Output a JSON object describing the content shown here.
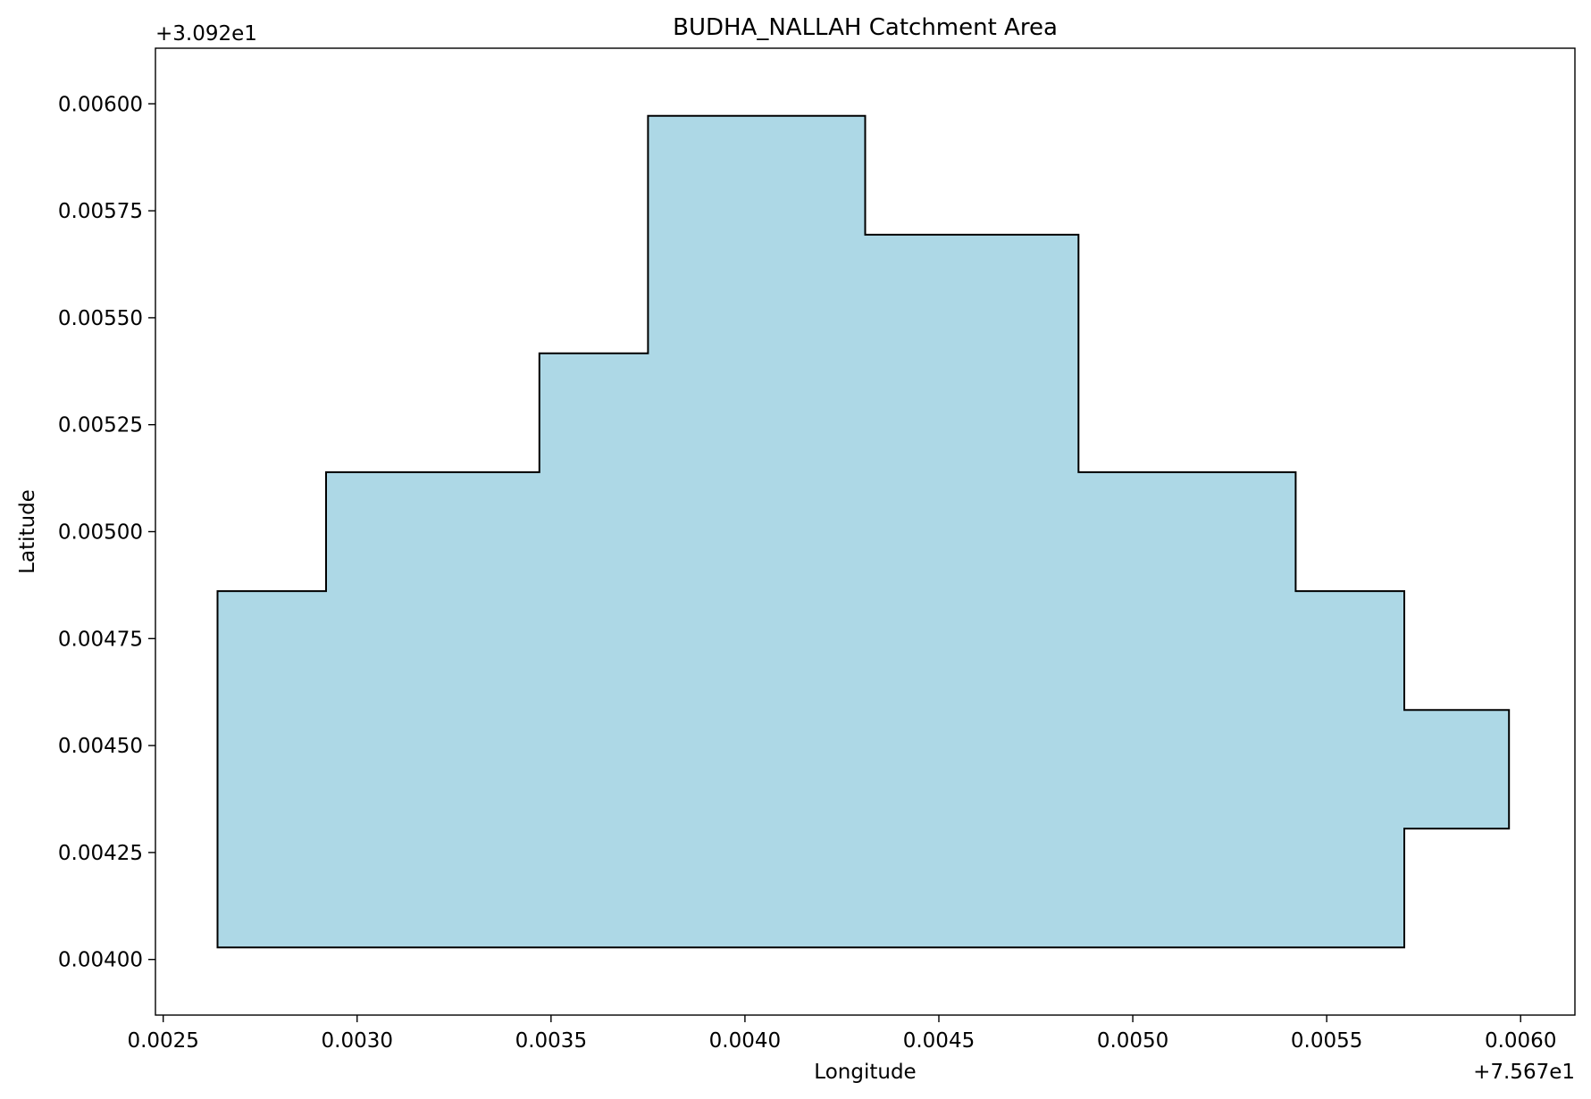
{
  "chart_data": {
    "type": "area",
    "title": "BUDHA_NALLAH Catchment Area",
    "xlabel": "Longitude",
    "ylabel": "Latitude",
    "x_offset_label": "+7.567e1",
    "y_offset_label": "+3.092e1",
    "xlim": [
      0.00248,
      0.00614
    ],
    "ylim": [
      0.00387,
      0.00613
    ],
    "xticks": [
      0.0025,
      0.003,
      0.0035,
      0.004,
      0.0045,
      0.005,
      0.0055,
      0.006
    ],
    "xtick_labels": [
      "0.0025",
      "0.0030",
      "0.0035",
      "0.0040",
      "0.0045",
      "0.0050",
      "0.0055",
      "0.0060"
    ],
    "yticks": [
      0.004,
      0.00425,
      0.0045,
      0.00475,
      0.005,
      0.00525,
      0.0055,
      0.00575,
      0.006
    ],
    "ytick_labels": [
      "0.00400",
      "0.00425",
      "0.00450",
      "0.00475",
      "0.00500",
      "0.00525",
      "0.00550",
      "0.00575",
      "0.00600"
    ],
    "grid": false,
    "fill_color": "#add8e6",
    "edge_color": "#000000",
    "polygon": {
      "x": [
        0.00264,
        0.00264,
        0.00292,
        0.00292,
        0.00347,
        0.00347,
        0.00375,
        0.00375,
        0.00431,
        0.00431,
        0.00486,
        0.00486,
        0.00542,
        0.00542,
        0.0057,
        0.0057,
        0.00597,
        0.00597,
        0.0057,
        0.0057,
        0.00264
      ],
      "y": [
        0.004028,
        0.004861,
        0.004861,
        0.005139,
        0.005139,
        0.005417,
        0.005417,
        0.005972,
        0.005972,
        0.005694,
        0.005694,
        0.005139,
        0.005139,
        0.004861,
        0.004861,
        0.004583,
        0.004583,
        0.004306,
        0.004306,
        0.004028,
        0.004028
      ]
    }
  }
}
